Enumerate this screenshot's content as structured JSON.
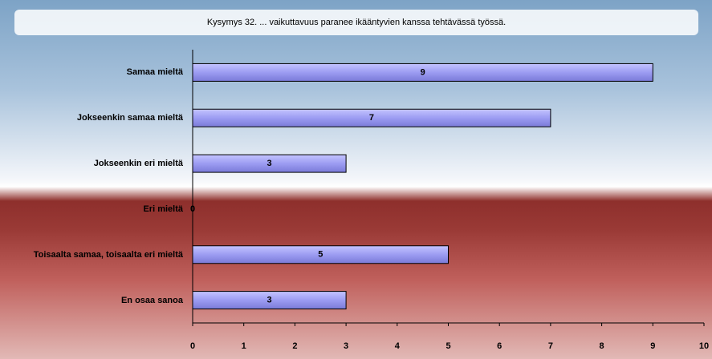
{
  "chart_data": {
    "type": "bar",
    "orientation": "horizontal",
    "title": "Kysymys 32. ... vaikuttavuus paranee ikääntyvien kanssa tehtävässä työssä.",
    "categories": [
      "Samaa mieltä",
      "Jokseenkin samaa mieltä",
      "Jokseenkin eri mieltä",
      "Eri mieltä",
      "Toisaalta samaa, toisaalta eri mieltä",
      "En osaa sanoa"
    ],
    "values": [
      9,
      7,
      3,
      0,
      5,
      3
    ],
    "color": "#9c9cf2",
    "xlim": [
      0,
      10
    ],
    "xticks": [
      0,
      1,
      2,
      3,
      4,
      5,
      6,
      7,
      8,
      9,
      10
    ],
    "grid": false
  }
}
